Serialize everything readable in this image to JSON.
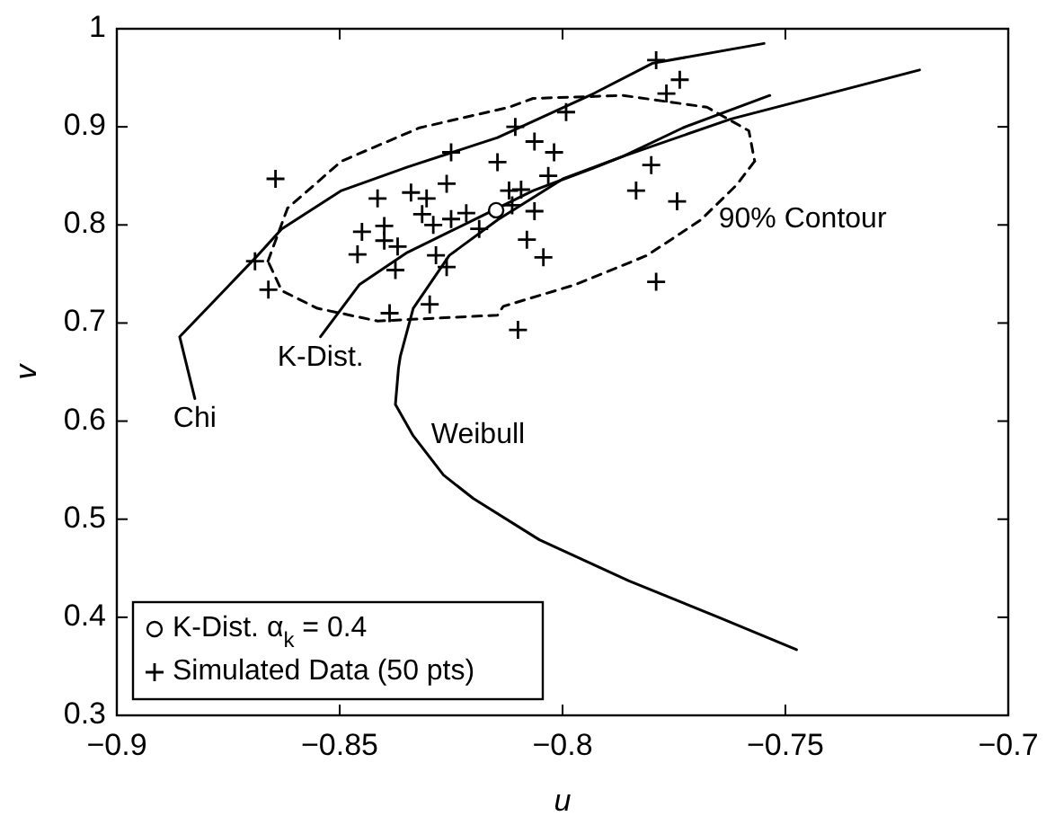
{
  "chart_data": {
    "type": "line",
    "xlabel": "u",
    "ylabel": "v",
    "xlim": [
      -0.9,
      -0.7
    ],
    "ylim": [
      0.3,
      1
    ],
    "xticks": [
      {
        "value": -0.9,
        "label": "−0.9"
      },
      {
        "value": -0.85,
        "label": "−0.85"
      },
      {
        "value": -0.8,
        "label": "−0.8"
      },
      {
        "value": -0.75,
        "label": "−0.75"
      },
      {
        "value": -0.7,
        "label": "−0.7"
      }
    ],
    "yticks": [
      0.3,
      0.4,
      0.5,
      0.6,
      0.7,
      0.8,
      0.9,
      1
    ],
    "grid": false,
    "legend": "bottom left",
    "series": [
      {
        "color": "#000000",
        "line_style": "solid",
        "marker": "none",
        "x": [
          -0.8825,
          -0.8859,
          -0.869,
          -0.863,
          -0.8496,
          -0.8348,
          -0.8146,
          -0.793,
          -0.7797,
          -0.7548
        ],
        "values": [
          0.623,
          0.686,
          0.766,
          0.796,
          0.835,
          0.859,
          0.889,
          0.934,
          0.965,
          0.985
        ]
      },
      {
        "color": "#000000",
        "line_style": "solid",
        "marker": "none",
        "x": [
          -0.8543,
          -0.8456,
          -0.8348,
          -0.82,
          -0.8066,
          -0.7931,
          -0.7864,
          -0.773,
          -0.7535
        ],
        "values": [
          0.686,
          0.739,
          0.772,
          0.805,
          0.835,
          0.858,
          0.87,
          0.899,
          0.932
        ]
      },
      {
        "color": "#000000",
        "line_style": "solid",
        "marker": "none",
        "x": [
          -0.7475,
          -0.765,
          -0.7851,
          -0.8052,
          -0.82,
          -0.8267,
          -0.8335,
          -0.8375,
          -0.8368,
          -0.8364,
          -0.8335,
          -0.8254,
          -0.8146,
          -0.7999,
          -0.7864,
          -0.7622,
          -0.7199
        ],
        "values": [
          0.367,
          0.4,
          0.437,
          0.479,
          0.521,
          0.545,
          0.585,
          0.617,
          0.654,
          0.666,
          0.715,
          0.769,
          0.805,
          0.847,
          0.87,
          0.908,
          0.958
        ]
      },
      {
        "type": "line",
        "color": "#000000",
        "line_style": "dashed",
        "marker": "none",
        "x": [
          -0.8661,
          -0.8617,
          -0.8496,
          -0.8321,
          -0.812,
          -0.8066,
          -0.7864,
          -0.7676,
          -0.7582,
          -0.7569
        ],
        "values": [
          0.763,
          0.817,
          0.865,
          0.899,
          0.92,
          0.929,
          0.932,
          0.92,
          0.896,
          0.865
        ]
      },
      {
        "type": "line",
        "color": "#000000",
        "line_style": "dashed",
        "marker": "none",
        "x": [
          -0.7569,
          -0.7609,
          -0.769,
          -0.781,
          -0.7972,
          -0.8133,
          -0.8146,
          -0.8415,
          -0.855,
          -0.863,
          -0.8661
        ],
        "values": [
          0.865,
          0.841,
          0.805,
          0.769,
          0.739,
          0.717,
          0.708,
          0.702,
          0.715,
          0.733,
          0.763
        ]
      },
      {
        "type": "scatter",
        "name": "Simulated Data (50 pts)",
        "color": "#000000",
        "marker": "cross",
        "x": [
          -0.8644,
          -0.869,
          -0.866,
          -0.8415,
          -0.845,
          -0.846,
          -0.84,
          -0.84,
          -0.837,
          -0.834,
          -0.8305,
          -0.826,
          -0.825,
          -0.8315,
          -0.829,
          -0.825,
          -0.8216,
          -0.8187,
          -0.8146,
          -0.8106,
          -0.8063,
          -0.8019,
          -0.7992,
          -0.8032,
          -0.812,
          -0.8093,
          -0.8113,
          -0.8063,
          -0.808,
          -0.8043,
          -0.8284,
          -0.826,
          -0.8375,
          -0.8388,
          -0.8298,
          -0.81,
          -0.779,
          -0.7737,
          -0.7767,
          -0.7801,
          -0.7835,
          -0.7743,
          -0.779
        ],
        "values": [
          0.847,
          0.763,
          0.734,
          0.827,
          0.793,
          0.77,
          0.799,
          0.784,
          0.778,
          0.833,
          0.827,
          0.842,
          0.874,
          0.811,
          0.8,
          0.806,
          0.812,
          0.796,
          0.864,
          0.9,
          0.885,
          0.874,
          0.915,
          0.85,
          0.835,
          0.836,
          0.82,
          0.814,
          0.785,
          0.767,
          0.769,
          0.757,
          0.754,
          0.71,
          0.719,
          0.693,
          0.968,
          0.948,
          0.934,
          0.861,
          0.835,
          0.824,
          0.742
        ]
      },
      {
        "type": "scatter",
        "name": "K-Dist. α$_{k}$ = 0.4",
        "color": "#000000",
        "marker": "circle",
        "x": [
          -0.8149
        ],
        "values": [
          0.815
        ]
      }
    ],
    "annotations": [
      {
        "text": "Chi",
        "x": -0.8825,
        "y": 0.623
      },
      {
        "text": "K-Dist.",
        "x": -0.8543,
        "y": 0.686
      },
      {
        "text": "Weibull",
        "x": -0.8335,
        "y": 0.585
      },
      {
        "text": "90% Contour",
        "x": -0.769,
        "y": 0.805
      }
    ]
  }
}
